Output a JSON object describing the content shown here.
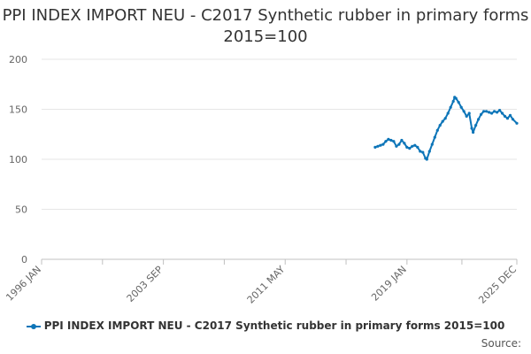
{
  "chart_data": {
    "type": "line",
    "title": "PPI INDEX IMPORT NEU - C2017 Synthetic rubber in primary forms 2015=100",
    "xlabel": "",
    "ylabel": "",
    "ylim": [
      0,
      200
    ],
    "yticks": [
      "0",
      "50",
      "100",
      "150",
      "200"
    ],
    "xticks": [
      "1996 JAN",
      "2003 SEP",
      "2011 MAY",
      "2019 JAN",
      "2025 DEC"
    ],
    "xlim": [
      "1996-01",
      "2025-12"
    ],
    "grid": true,
    "legend_position": "bottom",
    "series": [
      {
        "name": "PPI INDEX IMPORT NEU - C2017 Synthetic rubber in primary forms 2015=100",
        "color": "#0d75b8",
        "points": [
          [
            "2017-01",
            112
          ],
          [
            "2017-03",
            113
          ],
          [
            "2017-05",
            114
          ],
          [
            "2017-07",
            115
          ],
          [
            "2017-09",
            118
          ],
          [
            "2017-11",
            120
          ],
          [
            "2018-01",
            119
          ],
          [
            "2018-03",
            118
          ],
          [
            "2018-05",
            113
          ],
          [
            "2018-07",
            115
          ],
          [
            "2018-09",
            119
          ],
          [
            "2018-11",
            116
          ],
          [
            "2019-01",
            112
          ],
          [
            "2019-03",
            111
          ],
          [
            "2019-05",
            113
          ],
          [
            "2019-07",
            114
          ],
          [
            "2019-09",
            112
          ],
          [
            "2019-11",
            108
          ],
          [
            "2020-01",
            107
          ],
          [
            "2020-03",
            101
          ],
          [
            "2020-04",
            100
          ],
          [
            "2020-06",
            108
          ],
          [
            "2020-08",
            115
          ],
          [
            "2020-10",
            122
          ],
          [
            "2020-12",
            129
          ],
          [
            "2021-02",
            134
          ],
          [
            "2021-04",
            138
          ],
          [
            "2021-06",
            141
          ],
          [
            "2021-08",
            146
          ],
          [
            "2021-10",
            152
          ],
          [
            "2021-12",
            158
          ],
          [
            "2022-01",
            162
          ],
          [
            "2022-02",
            161
          ],
          [
            "2022-04",
            157
          ],
          [
            "2022-06",
            152
          ],
          [
            "2022-08",
            148
          ],
          [
            "2022-10",
            143
          ],
          [
            "2022-12",
            146
          ],
          [
            "2023-02",
            131
          ],
          [
            "2023-03",
            127
          ],
          [
            "2023-05",
            134
          ],
          [
            "2023-07",
            140
          ],
          [
            "2023-09",
            145
          ],
          [
            "2023-11",
            148
          ],
          [
            "2024-01",
            148
          ],
          [
            "2024-03",
            147
          ],
          [
            "2024-05",
            146
          ],
          [
            "2024-07",
            148
          ],
          [
            "2024-09",
            147
          ],
          [
            "2024-11",
            149
          ],
          [
            "2025-01",
            146
          ],
          [
            "2025-03",
            143
          ],
          [
            "2025-05",
            141
          ],
          [
            "2025-07",
            144
          ],
          [
            "2025-09",
            140
          ],
          [
            "2025-12",
            136
          ]
        ]
      }
    ]
  },
  "source_label": "Source:"
}
